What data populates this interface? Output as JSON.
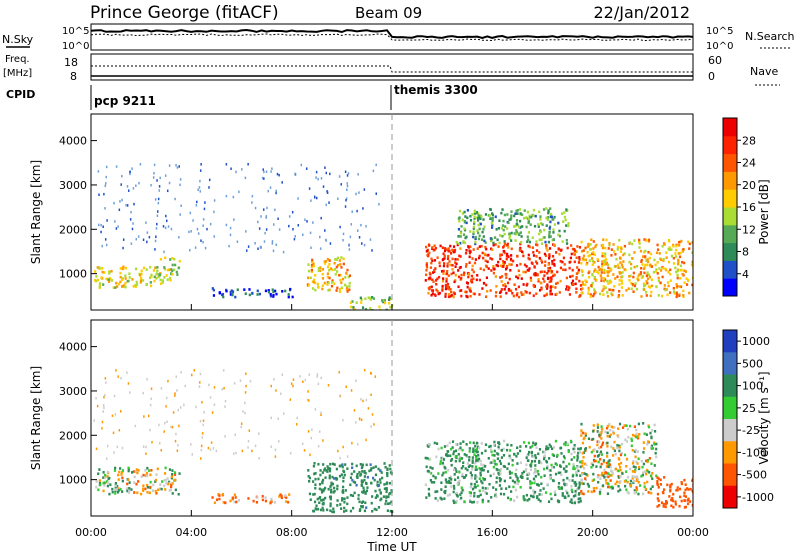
{
  "header": {
    "station": "Prince George (fitACF)",
    "beam": "Beam 09",
    "date": "22/Jan/2012"
  },
  "top_panels": {
    "nsky_label": "N.Sky",
    "nsearch_label": "N.Search",
    "freq_label_top": "Freq.",
    "freq_label_unit": "[MHz]",
    "nave_label": "Nave",
    "cpid_label": "CPID",
    "power_ticks_left": [
      "10^5",
      "10^0"
    ],
    "power_ticks_right": [
      "10^5",
      "10^0"
    ],
    "freq_ticks": [
      "18",
      "8"
    ],
    "nave_ticks": [
      "60",
      "0"
    ],
    "cpid_segments": [
      {
        "name": "pcp 9211",
        "start": "00:00"
      },
      {
        "name": "themis 3300",
        "start": "12:00"
      }
    ]
  },
  "power_colorbar": {
    "label": "Power [dB]",
    "ticks": [
      "4",
      "8",
      "12",
      "16",
      "20",
      "24",
      "28"
    ],
    "colors": [
      "#0000ff",
      "#1f50c8",
      "#2e8b57",
      "#55aa55",
      "#aadd33",
      "#ffcc00",
      "#ff9900",
      "#ff5500",
      "#ff2200",
      "#ee0000"
    ]
  },
  "velocity_colorbar": {
    "label": "Velocity [m s⁻¹]",
    "ticks": [
      "1000",
      "500",
      "100",
      "25",
      "-25",
      "-100",
      "-500",
      "-1000"
    ],
    "colors": [
      "#1f3fbf",
      "#3f6fbf",
      "#2e8b57",
      "#33cc33",
      "#cccccc",
      "#ff9900",
      "#ff5500",
      "#ee0000"
    ]
  },
  "chart_data": {
    "type": "heatmap",
    "xlabel": "Time UT",
    "ylabel": "Slant Range [km]",
    "x_ticks": [
      "00:00",
      "04:00",
      "08:00",
      "12:00",
      "16:00",
      "20:00",
      "00:00"
    ],
    "y_ticks": [
      "1000",
      "2000",
      "3000",
      "4000"
    ],
    "xlim": [
      0,
      24
    ],
    "ylim": [
      180,
      4600
    ],
    "grid": false,
    "regions_power": [
      {
        "t0": 0.1,
        "t1": 2.6,
        "r0": 700,
        "r1": 1200,
        "dB": 18
      },
      {
        "t0": 2.6,
        "t1": 3.5,
        "r0": 800,
        "r1": 1400,
        "dB": 16
      },
      {
        "t0": 4.8,
        "t1": 8.0,
        "r0": 500,
        "r1": 700,
        "dB": 6
      },
      {
        "t0": 8.6,
        "t1": 10.3,
        "r0": 600,
        "r1": 1400,
        "dB": 20
      },
      {
        "t0": 10.3,
        "t1": 12.0,
        "r0": 200,
        "r1": 500,
        "dB": 14
      },
      {
        "t0": 13.3,
        "t1": 19.5,
        "r0": 500,
        "r1": 1700,
        "dB": 27
      },
      {
        "t0": 14.5,
        "t1": 19.0,
        "r0": 1700,
        "r1": 2500,
        "dB": 12
      },
      {
        "t0": 19.5,
        "t1": 24.0,
        "r0": 500,
        "r1": 1800,
        "dB": 20
      }
    ],
    "regions_velocity": [
      {
        "t0": 0.1,
        "t1": 3.5,
        "r0": 700,
        "r1": 1300,
        "v": 0
      },
      {
        "t0": 4.8,
        "t1": 8.0,
        "r0": 500,
        "r1": 700,
        "v": -100
      },
      {
        "t0": 8.6,
        "t1": 12.0,
        "r0": 300,
        "r1": 1400,
        "v": 200
      },
      {
        "t0": 13.3,
        "t1": 19.5,
        "r0": 500,
        "r1": 1900,
        "v": 100
      },
      {
        "t0": 19.5,
        "t1": 22.5,
        "r0": 700,
        "r1": 2300,
        "v": 0
      },
      {
        "t0": 22.5,
        "t1": 24.0,
        "r0": 400,
        "r1": 1100,
        "v": -300
      }
    ]
  }
}
